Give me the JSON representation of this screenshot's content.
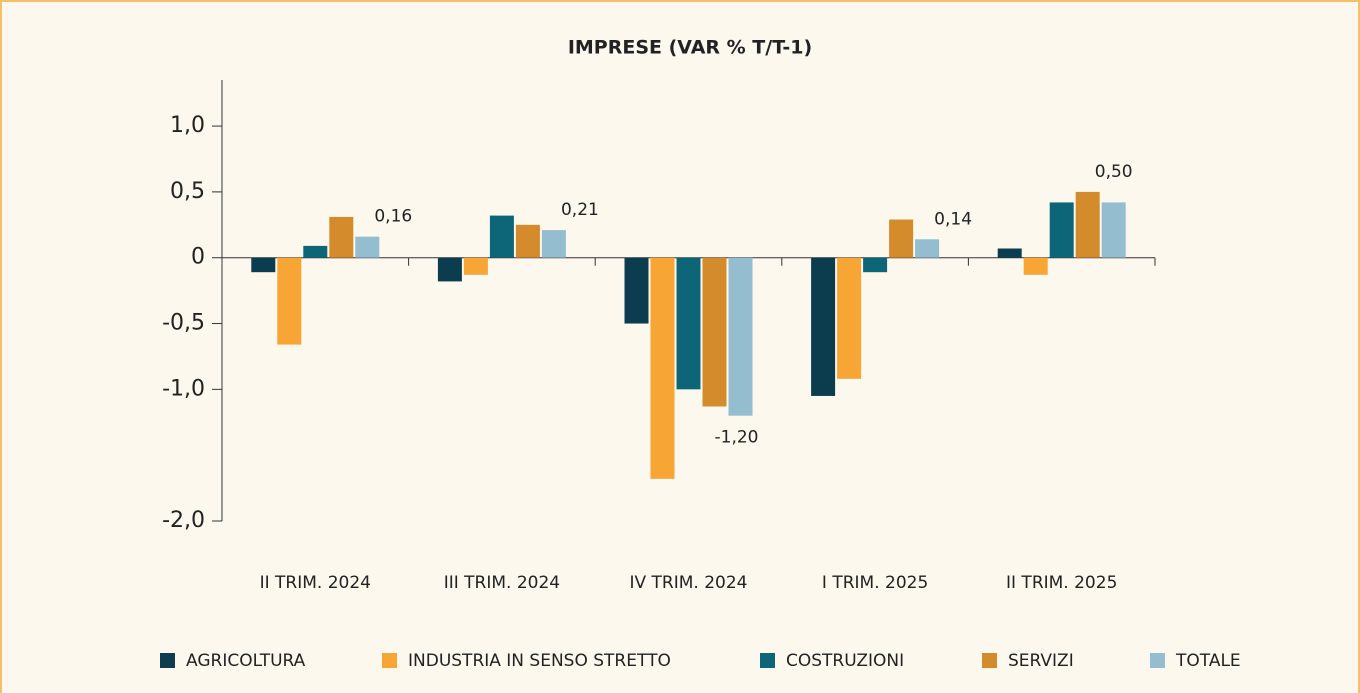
{
  "chart_data": {
    "type": "bar",
    "title": "IMPRESE (VAR % T/T-1)",
    "categories": [
      "II TRIM. 2024",
      "III TRIM. 2024",
      "IV TRIM. 2024",
      "I TRIM. 2025",
      "II TRIM. 2025"
    ],
    "series": [
      {
        "name": "AGRICOLTURA",
        "color": "#0b3d4f",
        "values": [
          -0.11,
          -0.18,
          -0.5,
          -1.05,
          0.07
        ]
      },
      {
        "name": "INDUSTRIA IN SENSO STRETTO",
        "color": "#f7a535",
        "values": [
          -0.66,
          -0.13,
          -1.68,
          -0.92,
          -0.13
        ]
      },
      {
        "name": "COSTRUZIONI",
        "color": "#0c6678",
        "values": [
          0.09,
          0.32,
          -1.0,
          -0.11,
          0.42
        ]
      },
      {
        "name": "SERVIZI",
        "color": "#d38b2b",
        "values": [
          0.31,
          0.25,
          -1.13,
          0.29,
          0.5
        ],
        "value_labels": [
          null,
          null,
          null,
          null,
          "0,50"
        ]
      },
      {
        "name": "TOTALE",
        "color": "#95bdd0",
        "values": [
          0.16,
          0.21,
          -1.2,
          0.14,
          0.42
        ],
        "value_labels": [
          "0,16",
          "0,21",
          "-1,20",
          "0,14",
          null
        ]
      }
    ],
    "ylim": [
      -2.0,
      1.35
    ],
    "yticks": [
      {
        "value": 1,
        "label": "1,0"
      },
      {
        "value": 0.5,
        "label": "0,5"
      },
      0,
      {
        "value": -0.5,
        "label": "-0,5"
      },
      {
        "value": -1,
        "label": "-1,0"
      },
      {
        "value": -2,
        "label": "-2,0"
      }
    ],
    "legend": "bottom"
  }
}
